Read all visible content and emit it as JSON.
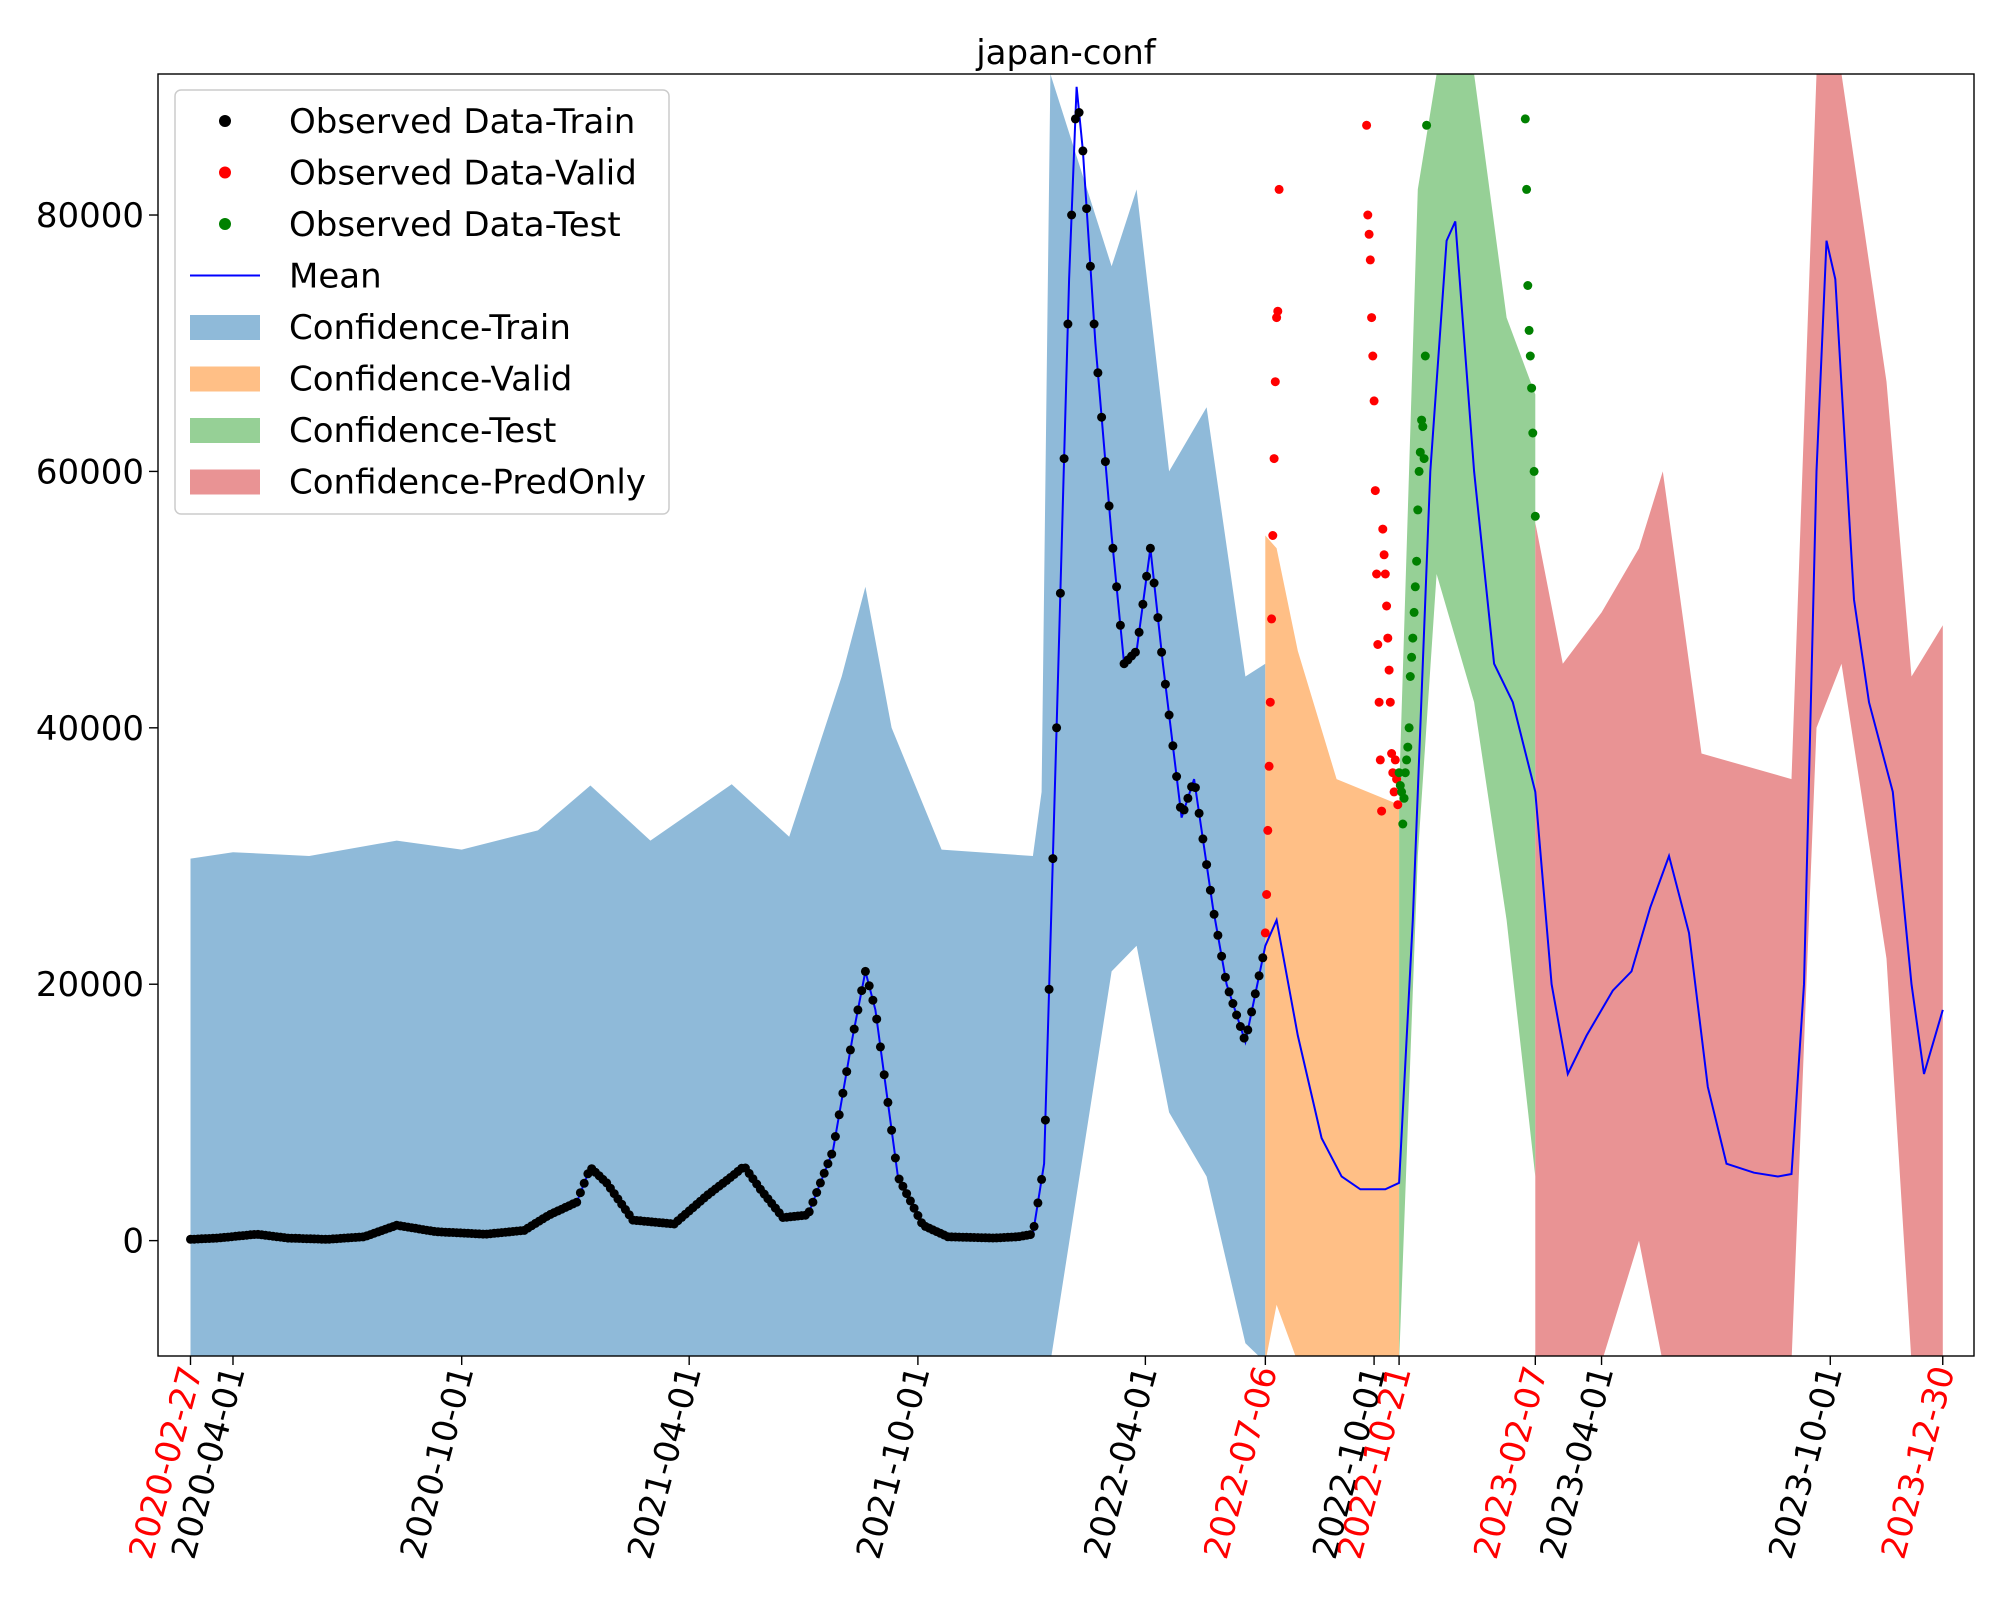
{
  "chart_data": {
    "type": "line",
    "title": "japan-conf",
    "xlabel": "",
    "ylabel": "",
    "xlim": [
      "2020-02-01",
      "2024-01-24"
    ],
    "ylim": [
      -9000,
      91000
    ],
    "grid": false,
    "legend": {
      "placement": "top-left",
      "entries": [
        {
          "label": "Observed Data-Train",
          "kind": "marker",
          "color": "#000000"
        },
        {
          "label": "Observed Data-Valid",
          "kind": "marker",
          "color": "#ff0000"
        },
        {
          "label": "Observed Data-Test",
          "kind": "marker",
          "color": "#008000"
        },
        {
          "label": "Mean",
          "kind": "line",
          "color": "#0000ff"
        },
        {
          "label": "Confidence-Train",
          "kind": "patch",
          "color": "#8fbad9"
        },
        {
          "label": "Confidence-Valid",
          "kind": "patch",
          "color": "#ffbf86"
        },
        {
          "label": "Confidence-Test",
          "kind": "patch",
          "color": "#96d096"
        },
        {
          "label": "Confidence-PredOnly",
          "kind": "patch",
          "color": "#e99394"
        }
      ]
    },
    "y_ticks": [
      0,
      20000,
      40000,
      60000,
      80000
    ],
    "x_ticks": [
      {
        "date": "2020-02-27",
        "label": "2020-02-27",
        "color": "#ff0000"
      },
      {
        "date": "2020-04-01",
        "label": "2020-04-01",
        "color": "#000000"
      },
      {
        "date": "2020-10-01",
        "label": "2020-10-01",
        "color": "#000000"
      },
      {
        "date": "2021-04-01",
        "label": "2021-04-01",
        "color": "#000000"
      },
      {
        "date": "2021-10-01",
        "label": "2021-10-01",
        "color": "#000000"
      },
      {
        "date": "2022-04-01",
        "label": "2022-04-01",
        "color": "#000000"
      },
      {
        "date": "2022-07-06",
        "label": "2022-07-06",
        "color": "#ff0000"
      },
      {
        "date": "2022-10-01",
        "label": "2022-10-01",
        "color": "#000000"
      },
      {
        "date": "2022-10-21",
        "label": "2022-10-21",
        "color": "#ff0000"
      },
      {
        "date": "2023-02-07",
        "label": "2023-02-07",
        "color": "#ff0000"
      },
      {
        "date": "2023-04-01",
        "label": "2023-04-01",
        "color": "#000000"
      },
      {
        "date": "2023-10-01",
        "label": "2023-10-01",
        "color": "#000000"
      },
      {
        "date": "2023-12-30",
        "label": "2023-12-30",
        "color": "#ff0000"
      }
    ],
    "mean": {
      "name": "Mean",
      "color": "#0000ff",
      "points": [
        [
          "2020-02-27",
          100
        ],
        [
          "2020-03-20",
          200
        ],
        [
          "2020-04-20",
          500
        ],
        [
          "2020-05-15",
          200
        ],
        [
          "2020-06-15",
          100
        ],
        [
          "2020-07-15",
          300
        ],
        [
          "2020-08-10",
          1200
        ],
        [
          "2020-09-10",
          700
        ],
        [
          "2020-10-20",
          500
        ],
        [
          "2020-11-20",
          800
        ],
        [
          "2020-12-10",
          2000
        ],
        [
          "2021-01-01",
          3000
        ],
        [
          "2021-01-12",
          5700
        ],
        [
          "2021-01-25",
          4500
        ],
        [
          "2021-02-15",
          1600
        ],
        [
          "2021-03-20",
          1300
        ],
        [
          "2021-04-15",
          3500
        ],
        [
          "2021-05-05",
          5000
        ],
        [
          "2021-05-15",
          5800
        ],
        [
          "2021-05-28",
          4000
        ],
        [
          "2021-06-15",
          1800
        ],
        [
          "2021-07-05",
          2000
        ],
        [
          "2021-07-25",
          7000
        ],
        [
          "2021-08-10",
          16000
        ],
        [
          "2021-08-20",
          21000
        ],
        [
          "2021-08-28",
          18000
        ],
        [
          "2021-09-15",
          5000
        ],
        [
          "2021-10-05",
          1200
        ],
        [
          "2021-10-25",
          300
        ],
        [
          "2021-12-01",
          200
        ],
        [
          "2021-12-20",
          300
        ],
        [
          "2022-01-01",
          500
        ],
        [
          "2022-01-10",
          6000
        ],
        [
          "2022-01-20",
          40000
        ],
        [
          "2022-01-30",
          75000
        ],
        [
          "2022-02-05",
          90000
        ],
        [
          "2022-02-10",
          85000
        ],
        [
          "2022-02-20",
          70000
        ],
        [
          "2022-03-05",
          55000
        ],
        [
          "2022-03-15",
          45000
        ],
        [
          "2022-03-25",
          46000
        ],
        [
          "2022-04-05",
          54000
        ],
        [
          "2022-04-15",
          45000
        ],
        [
          "2022-04-30",
          33000
        ],
        [
          "2022-05-10",
          36000
        ],
        [
          "2022-05-25",
          26000
        ],
        [
          "2022-06-05",
          20000
        ],
        [
          "2022-06-20",
          15500
        ],
        [
          "2022-07-06",
          23000
        ],
        [
          "2022-07-15",
          25000
        ],
        [
          "2022-08-01",
          16000
        ],
        [
          "2022-08-20",
          8000
        ],
        [
          "2022-09-05",
          5000
        ],
        [
          "2022-09-20",
          4000
        ],
        [
          "2022-10-10",
          4000
        ],
        [
          "2022-10-21",
          4500
        ],
        [
          "2022-11-01",
          25000
        ],
        [
          "2022-11-15",
          60000
        ],
        [
          "2022-11-28",
          78000
        ],
        [
          "2022-12-05",
          79500
        ],
        [
          "2022-12-20",
          60000
        ],
        [
          "2023-01-05",
          45000
        ],
        [
          "2023-01-20",
          42000
        ],
        [
          "2023-02-07",
          35000
        ],
        [
          "2023-02-20",
          20000
        ],
        [
          "2023-03-05",
          13000
        ],
        [
          "2023-03-20",
          16000
        ],
        [
          "2023-04-10",
          19500
        ],
        [
          "2023-04-25",
          21000
        ],
        [
          "2023-05-10",
          26000
        ],
        [
          "2023-05-25",
          30000
        ],
        [
          "2023-06-10",
          24000
        ],
        [
          "2023-06-25",
          12000
        ],
        [
          "2023-07-10",
          6000
        ],
        [
          "2023-08-01",
          5300
        ],
        [
          "2023-08-20",
          5000
        ],
        [
          "2023-08-31",
          5200
        ],
        [
          "2023-09-10",
          20000
        ],
        [
          "2023-09-20",
          60000
        ],
        [
          "2023-09-28",
          78000
        ],
        [
          "2023-10-05",
          75000
        ],
        [
          "2023-10-20",
          50000
        ],
        [
          "2023-11-01",
          42000
        ],
        [
          "2023-11-20",
          35000
        ],
        [
          "2023-12-05",
          20000
        ],
        [
          "2023-12-15",
          13000
        ],
        [
          "2023-12-30",
          18000
        ]
      ]
    },
    "series": [
      {
        "name": "Confidence-Train",
        "kind": "band",
        "color": "#8fbad9",
        "points": [
          [
            "2020-02-27",
            29800,
            -9500
          ],
          [
            "2020-04-01",
            30300,
            -9500
          ],
          [
            "2020-06-01",
            30000,
            -9500
          ],
          [
            "2020-08-10",
            31200,
            -9500
          ],
          [
            "2020-10-01",
            30500,
            -9500
          ],
          [
            "2020-12-01",
            32000,
            -9500
          ],
          [
            "2021-01-12",
            35500,
            -9500
          ],
          [
            "2021-03-01",
            31200,
            -9500
          ],
          [
            "2021-05-05",
            35600,
            -9500
          ],
          [
            "2021-06-20",
            31500,
            -9500
          ],
          [
            "2021-08-01",
            44000,
            -9500
          ],
          [
            "2021-08-20",
            51000,
            -9500
          ],
          [
            "2021-09-10",
            40000,
            -9500
          ],
          [
            "2021-10-20",
            30500,
            -9500
          ],
          [
            "2022-01-01",
            30000,
            -9500
          ],
          [
            "2022-01-08",
            35000,
            -9500
          ],
          [
            "2022-01-15",
            91000,
            -9500
          ],
          [
            "2022-03-05",
            76000,
            21000
          ],
          [
            "2022-03-25",
            82000,
            23000
          ],
          [
            "2022-04-20",
            60000,
            10000
          ],
          [
            "2022-05-20",
            65000,
            5000
          ],
          [
            "2022-06-20",
            44000,
            -8000
          ],
          [
            "2022-07-06",
            45000,
            -9500
          ]
        ]
      },
      {
        "name": "Confidence-Valid",
        "kind": "band",
        "color": "#ffbf86",
        "points": [
          [
            "2022-07-06",
            55000,
            -9500
          ],
          [
            "2022-07-15",
            54000,
            -5000
          ],
          [
            "2022-08-01",
            46000,
            -9500
          ],
          [
            "2022-09-01",
            36000,
            -9500
          ],
          [
            "2022-10-21",
            34000,
            -9500
          ]
        ]
      },
      {
        "name": "Confidence-Test",
        "kind": "band",
        "color": "#96d096",
        "points": [
          [
            "2022-10-21",
            35000,
            -9500
          ],
          [
            "2022-11-05",
            82000,
            30000
          ],
          [
            "2022-11-20",
            91000,
            52000
          ],
          [
            "2022-12-20",
            91000,
            42000
          ],
          [
            "2023-01-15",
            72000,
            25000
          ],
          [
            "2023-02-07",
            66000,
            5000
          ]
        ]
      },
      {
        "name": "Confidence-PredOnly",
        "kind": "band",
        "color": "#e99394",
        "points": [
          [
            "2023-02-07",
            56000,
            -9500
          ],
          [
            "2023-03-01",
            45000,
            -9500
          ],
          [
            "2023-04-01",
            49000,
            -9500
          ],
          [
            "2023-05-01",
            54000,
            0
          ],
          [
            "2023-05-20",
            60000,
            -9500
          ],
          [
            "2023-06-20",
            38000,
            -9500
          ],
          [
            "2023-08-31",
            36000,
            -9500
          ],
          [
            "2023-09-20",
            91000,
            40000
          ],
          [
            "2023-10-10",
            91000,
            45000
          ],
          [
            "2023-11-15",
            67000,
            22000
          ],
          [
            "2023-12-05",
            44000,
            -9500
          ],
          [
            "2023-12-30",
            48000,
            -9500
          ]
        ]
      },
      {
        "name": "Observed Data-Train",
        "kind": "markers",
        "color": "#000000",
        "source": "mean",
        "range": [
          "2020-02-27",
          "2022-07-05"
        ],
        "every_days": 3
      },
      {
        "name": "Observed Data-Valid",
        "kind": "markers",
        "color": "#ff0000",
        "points": [
          [
            "2022-07-06",
            24000
          ],
          [
            "2022-07-07",
            27000
          ],
          [
            "2022-07-08",
            32000
          ],
          [
            "2022-07-09",
            37000
          ],
          [
            "2022-07-10",
            42000
          ],
          [
            "2022-07-11",
            48500
          ],
          [
            "2022-07-12",
            55000
          ],
          [
            "2022-07-13",
            61000
          ],
          [
            "2022-07-14",
            67000
          ],
          [
            "2022-07-15",
            72000
          ],
          [
            "2022-07-16",
            72500
          ],
          [
            "2022-07-17",
            82000
          ],
          [
            "2022-09-25",
            87000
          ],
          [
            "2022-09-26",
            80000
          ],
          [
            "2022-09-27",
            78500
          ],
          [
            "2022-09-28",
            76500
          ],
          [
            "2022-09-29",
            72000
          ],
          [
            "2022-09-30",
            69000
          ],
          [
            "2022-10-01",
            65500
          ],
          [
            "2022-10-02",
            58500
          ],
          [
            "2022-10-03",
            52000
          ],
          [
            "2022-10-04",
            46500
          ],
          [
            "2022-10-05",
            42000
          ],
          [
            "2022-10-06",
            37500
          ],
          [
            "2022-10-07",
            33500
          ],
          [
            "2022-10-08",
            55500
          ],
          [
            "2022-10-09",
            53500
          ],
          [
            "2022-10-10",
            52000
          ],
          [
            "2022-10-11",
            49500
          ],
          [
            "2022-10-12",
            47000
          ],
          [
            "2022-10-13",
            44500
          ],
          [
            "2022-10-14",
            42000
          ],
          [
            "2022-10-15",
            38000
          ],
          [
            "2022-10-16",
            36500
          ],
          [
            "2022-10-17",
            35000
          ],
          [
            "2022-10-18",
            37500
          ],
          [
            "2022-10-19",
            36000
          ],
          [
            "2022-10-20",
            34000
          ]
        ]
      },
      {
        "name": "Observed Data-Test",
        "kind": "markers",
        "color": "#008000",
        "points": [
          [
            "2022-10-21",
            36500
          ],
          [
            "2022-10-22",
            35500
          ],
          [
            "2022-10-23",
            35000
          ],
          [
            "2022-10-24",
            32500
          ],
          [
            "2022-10-25",
            34500
          ],
          [
            "2022-10-26",
            36500
          ],
          [
            "2022-10-27",
            37500
          ],
          [
            "2022-10-28",
            38500
          ],
          [
            "2022-10-29",
            40000
          ],
          [
            "2022-10-30",
            44000
          ],
          [
            "2022-10-31",
            45500
          ],
          [
            "2022-11-01",
            47000
          ],
          [
            "2022-11-02",
            49000
          ],
          [
            "2022-11-03",
            51000
          ],
          [
            "2022-11-04",
            53000
          ],
          [
            "2022-11-05",
            57000
          ],
          [
            "2022-11-06",
            60000
          ],
          [
            "2022-11-07",
            61500
          ],
          [
            "2022-11-08",
            64000
          ],
          [
            "2022-11-09",
            63500
          ],
          [
            "2022-11-10",
            61000
          ],
          [
            "2022-11-11",
            69000
          ],
          [
            "2022-11-12",
            87000
          ],
          [
            "2023-01-30",
            87500
          ],
          [
            "2023-01-31",
            82000
          ],
          [
            "2023-02-01",
            74500
          ],
          [
            "2023-02-02",
            71000
          ],
          [
            "2023-02-03",
            69000
          ],
          [
            "2023-02-04",
            66500
          ],
          [
            "2023-02-05",
            63000
          ],
          [
            "2023-02-06",
            60000
          ],
          [
            "2023-02-07",
            56500
          ]
        ]
      }
    ]
  }
}
